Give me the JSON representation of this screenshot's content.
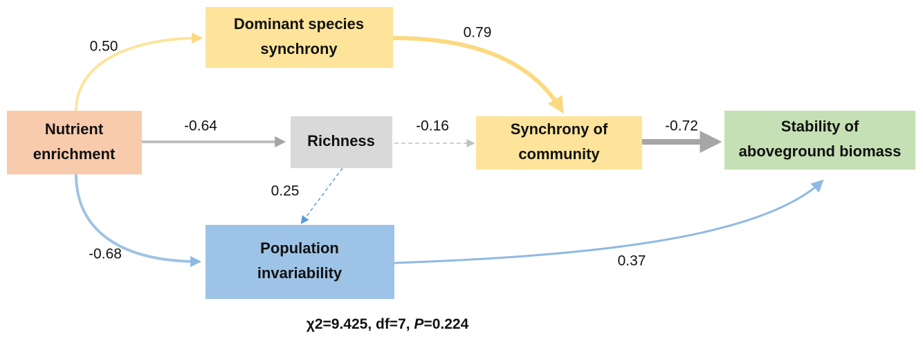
{
  "nodes": [
    {
      "id": "dss",
      "lines": [
        "Dominant  species",
        "synchrony"
      ]
    },
    {
      "id": "ne",
      "lines": [
        "Nutrient",
        "enrichment"
      ]
    },
    {
      "id": "rich",
      "lines": [
        "Richness"
      ]
    },
    {
      "id": "soc",
      "lines": [
        "Synchrony of",
        "community"
      ]
    },
    {
      "id": "stab",
      "lines": [
        "Stability of",
        "aboveground biomass"
      ]
    },
    {
      "id": "pi",
      "lines": [
        "Population",
        "invariability"
      ]
    }
  ],
  "edges": [
    {
      "label": "0.50"
    },
    {
      "label": "0.79"
    },
    {
      "label": "-0.64"
    },
    {
      "label": "-0.16"
    },
    {
      "label": "-0.72"
    },
    {
      "label": "0.25"
    },
    {
      "label": "-0.68"
    },
    {
      "label": "0.37"
    }
  ],
  "footer": {
    "prefix": "χ2=9.425, df=7, ",
    "italic": "P",
    "suffix": "=0.224"
  }
}
